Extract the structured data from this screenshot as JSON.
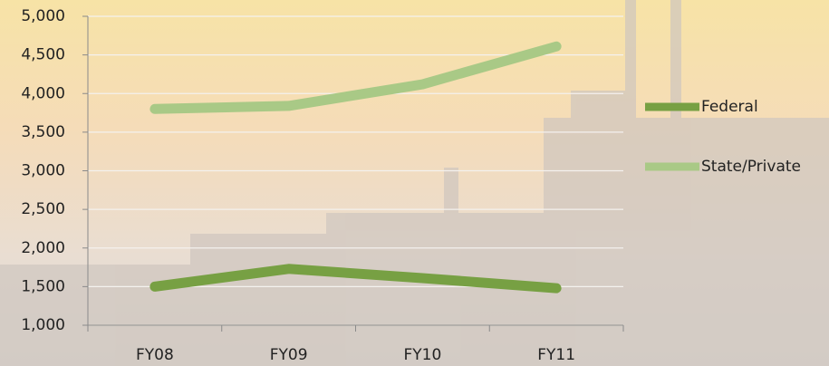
{
  "chart_data": {
    "type": "line",
    "categories": [
      "FY08",
      "FY09",
      "FY10",
      "FY11"
    ],
    "series": [
      {
        "name": "Federal",
        "color": "#77a043",
        "values": [
          1500,
          1730,
          1610,
          1480
        ]
      },
      {
        "name": "State/Private",
        "color": "#a9c986",
        "values": [
          3800,
          3840,
          4120,
          4610
        ]
      }
    ],
    "ylim": [
      1000,
      5000
    ],
    "yticks": [
      {
        "value": 1000,
        "label": "1,000"
      },
      {
        "value": 1500,
        "label": "1,500"
      },
      {
        "value": 2000,
        "label": "2,000"
      },
      {
        "value": 2500,
        "label": "2,500"
      },
      {
        "value": 3000,
        "label": "3,000"
      },
      {
        "value": 3500,
        "label": "3,500"
      },
      {
        "value": 4000,
        "label": "4,000"
      },
      {
        "value": 4500,
        "label": "4,500"
      },
      {
        "value": 5000,
        "label": "5,000"
      }
    ],
    "grid": true,
    "legend": "right"
  }
}
